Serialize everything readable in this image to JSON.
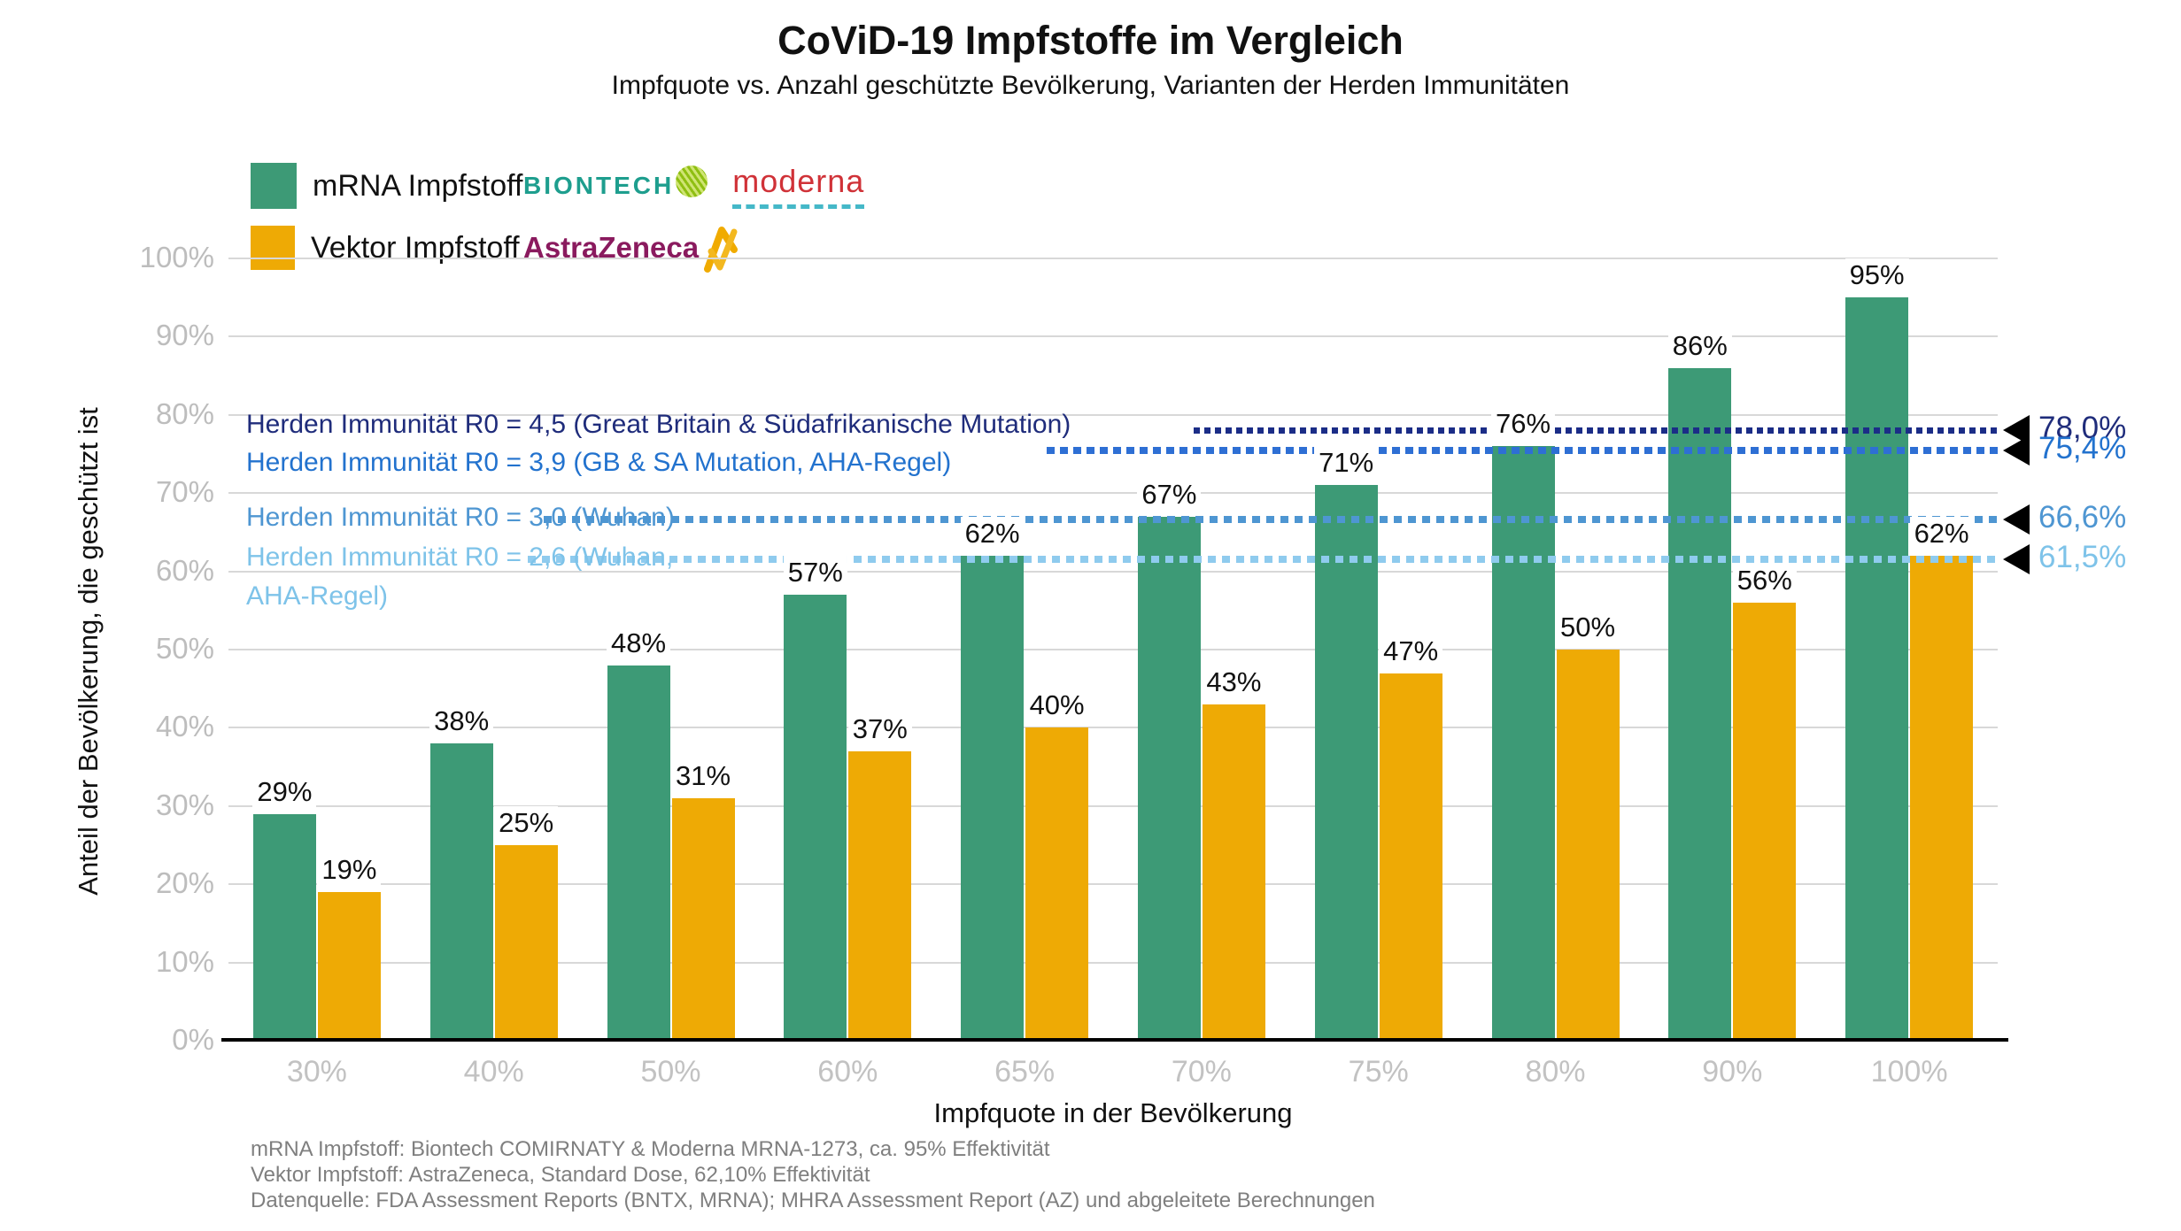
{
  "title": "CoViD-19 Impfstoffe im Vergleich",
  "subtitle": "Impfquote vs. Anzahl geschützte Bevölkerung, Varianten der Herden Immunitäten",
  "legend": {
    "items": [
      {
        "label": "mRNA Impfstoff",
        "color": "#3D9A76"
      },
      {
        "label": "Vektor Impfstoff",
        "color": "#EEAA05"
      }
    ],
    "logos": {
      "biontech": "BIONTECH",
      "moderna": "moderna",
      "astrazeneca": "AstraZeneca"
    }
  },
  "chart_data": {
    "type": "bar",
    "categories": [
      "30%",
      "40%",
      "50%",
      "60%",
      "65%",
      "70%",
      "75%",
      "80%",
      "90%",
      "100%"
    ],
    "series": [
      {
        "name": "mRNA Impfstoff",
        "color": "#3D9A76",
        "values": [
          29,
          38,
          48,
          57,
          62,
          67,
          71,
          76,
          86,
          95
        ],
        "labels": [
          "29%",
          "38%",
          "48%",
          "57%",
          "62%",
          "67%",
          "71%",
          "76%",
          "86%",
          "95%"
        ]
      },
      {
        "name": "Vektor Impfstoff",
        "color": "#EEAA05",
        "values": [
          19,
          25,
          31,
          37,
          40,
          43,
          47,
          50,
          56,
          62
        ],
        "labels": [
          "19%",
          "25%",
          "31%",
          "37%",
          "40%",
          "43%",
          "47%",
          "50%",
          "56%",
          "62%"
        ]
      }
    ],
    "xlabel": "Impfquote in der Bevölkerung",
    "ylabel": "Anteil der Bevölkerung, die geschützt ist",
    "ylim": [
      0,
      100
    ],
    "yticks": [
      "0%",
      "10%",
      "20%",
      "30%",
      "40%",
      "50%",
      "60%",
      "70%",
      "80%",
      "90%",
      "100%"
    ],
    "grid": true,
    "legend_position": "top-left",
    "reference_lines": [
      {
        "value": 78.0,
        "value_label": "78,0%",
        "color": "#1B2D87",
        "text_color": "#1F2C7B",
        "label": "Herden Immunität R0 = 4,5 (Great Britain & Südafrikanische Mutation)",
        "label_lines": [
          "Herden Immunität R0 = 4,5 (Great Britain & Südafrikanische Mutation)"
        ]
      },
      {
        "value": 75.4,
        "value_label": "75,4%",
        "color": "#2E6FD4",
        "text_color": "#2272CE",
        "label": "Herden Immunität R0 = 3,9 (GB & SA Mutation, AHA-Regel)",
        "label_lines": [
          "Herden Immunität R0 = 3,9 (GB & SA Mutation, AHA-Regel)"
        ]
      },
      {
        "value": 66.6,
        "value_label": "66,6%",
        "color": "#4E96D2",
        "text_color": "#4E96D2",
        "label": "Herden Immunität R0 = 3,0 (Wuhan)",
        "label_lines": [
          "Herden Immunität R0 = 3,0 (Wuhan)"
        ]
      },
      {
        "value": 61.5,
        "value_label": "61,5%",
        "color": "#8FCBEE",
        "text_color": "#7EC3E9",
        "label": "Herden Immunität R0 = 2,6 (Wuhan, AHA-Regel)",
        "label_lines": [
          "Herden Immunität R0 = 2,6 (Wuhan,",
          "AHA-Regel)"
        ]
      }
    ]
  },
  "footnotes": [
    "mRNA Impfstoff: Biontech COMIRNATY & Moderna MRNA-1273, ca. 95% Effektivität",
    "Vektor Impfstoff: AstraZeneca, Standard Dose, 62,10% Effektivität",
    "Datenquelle: FDA Assessment Reports (BNTX, MRNA); MHRA Assessment Report (AZ) und abgeleitete Berechnungen"
  ]
}
